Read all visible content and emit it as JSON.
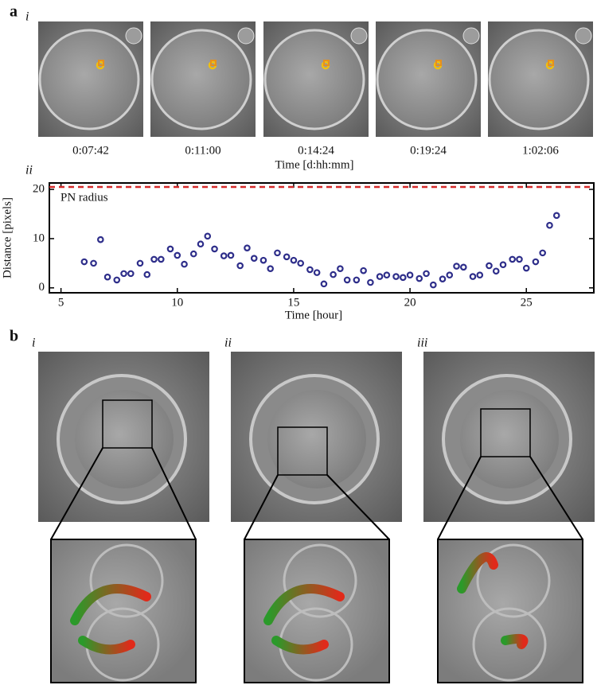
{
  "panel_a": {
    "label": "a",
    "sub_i": "i",
    "sub_ii": "ii",
    "times": [
      "0:07:42",
      "0:11:00",
      "0:14:24",
      "0:19:24",
      "1:02:06"
    ],
    "time_axis_label": "Time [d:hh:mm]"
  },
  "chart_data": {
    "type": "scatter",
    "xlabel": "Time [hour]",
    "ylabel": "Distance [pixels]",
    "x": [
      6.0,
      6.4,
      6.7,
      7.0,
      7.4,
      7.7,
      8.0,
      8.4,
      8.7,
      9.0,
      9.3,
      9.7,
      10.0,
      10.3,
      10.7,
      11.0,
      11.3,
      11.6,
      12.0,
      12.3,
      12.7,
      13.0,
      13.3,
      13.7,
      14.0,
      14.3,
      14.7,
      15.0,
      15.3,
      15.7,
      16.0,
      16.3,
      16.7,
      17.0,
      17.3,
      17.7,
      18.0,
      18.3,
      18.7,
      19.0,
      19.4,
      19.7,
      20.0,
      20.4,
      20.7,
      21.0,
      21.4,
      21.7,
      22.0,
      22.3,
      22.7,
      23.0,
      23.4,
      23.7,
      24.0,
      24.4,
      24.7,
      25.0,
      25.4,
      25.7,
      26.0,
      26.3
    ],
    "values": [
      5.3,
      5.0,
      9.8,
      2.2,
      1.6,
      2.9,
      2.9,
      5.0,
      2.7,
      5.8,
      5.8,
      7.9,
      6.6,
      4.8,
      6.9,
      8.9,
      10.5,
      7.9,
      6.5,
      6.6,
      4.5,
      8.1,
      6.0,
      5.6,
      3.9,
      7.1,
      6.3,
      5.6,
      5.0,
      3.7,
      3.1,
      0.8,
      2.7,
      3.9,
      1.6,
      1.6,
      3.5,
      1.1,
      2.3,
      2.6,
      2.3,
      2.1,
      2.6,
      1.9,
      2.9,
      0.6,
      1.8,
      2.6,
      4.4,
      4.2,
      2.3,
      2.6,
      4.5,
      3.4,
      4.7,
      5.8,
      5.8,
      4.0,
      5.3,
      7.1,
      12.7,
      14.7
    ],
    "color": "#2e2e8a",
    "xlim": [
      4.5,
      27.9
    ],
    "ylim": [
      -1,
      21.3
    ],
    "xticks": [
      5,
      10,
      15,
      20,
      25
    ],
    "yticks": [
      0,
      10,
      20
    ],
    "threshold": {
      "label": "PN radius",
      "value": 20.5,
      "color": "#d42a2a"
    }
  },
  "panel_b": {
    "label": "b",
    "subs": [
      "i",
      "ii",
      "iii"
    ]
  }
}
